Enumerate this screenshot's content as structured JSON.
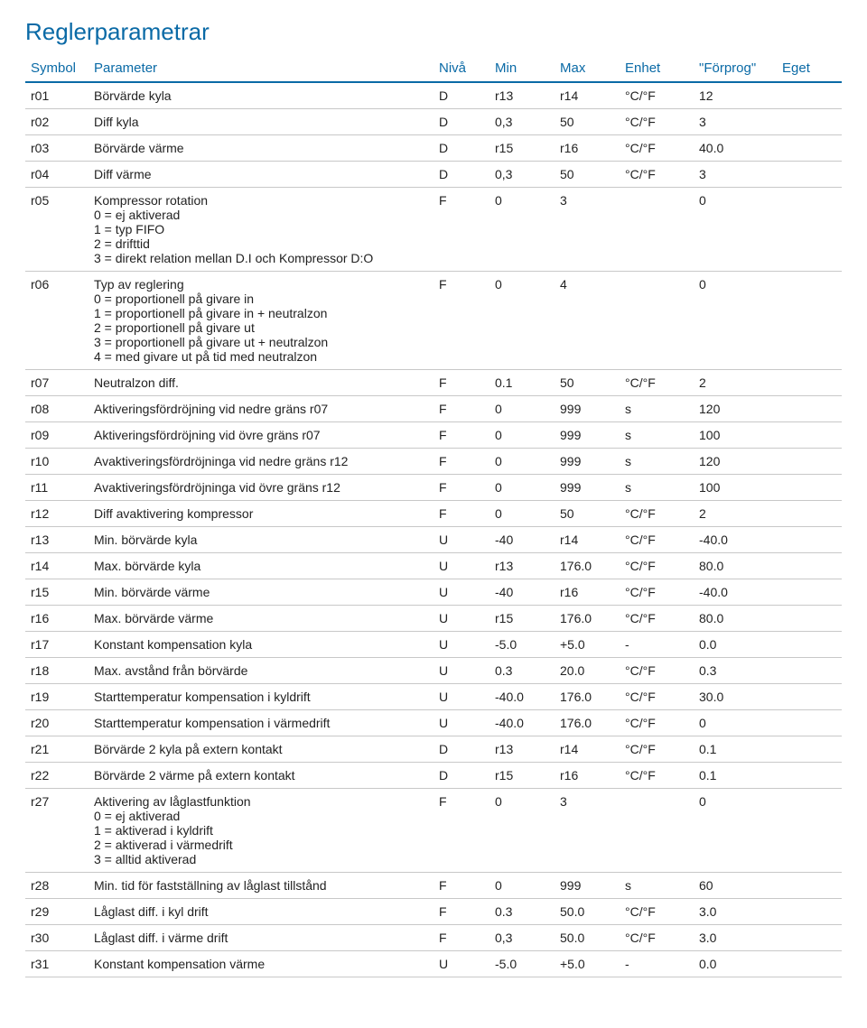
{
  "title": "Reglerparametrar",
  "columns": [
    "Symbol",
    "Parameter",
    "Nivå",
    "Min",
    "Max",
    "Enhet",
    "\"Förprog\"",
    "Eget"
  ],
  "rows": [
    {
      "sym": "r01",
      "param": "Börvärde kyla",
      "niva": "D",
      "min": "r13",
      "max": "r14",
      "enhet": "°C/°F",
      "forprog": "12",
      "eget": ""
    },
    {
      "sym": "r02",
      "param": "Diff kyla",
      "niva": "D",
      "min": "0,3",
      "max": "50",
      "enhet": "°C/°F",
      "forprog": "3",
      "eget": ""
    },
    {
      "sym": "r03",
      "param": "Börvärde värme",
      "niva": "D",
      "min": "r15",
      "max": "r16",
      "enhet": "°C/°F",
      "forprog": "40.0",
      "eget": ""
    },
    {
      "sym": "r04",
      "param": "Diff värme",
      "niva": "D",
      "min": "0,3",
      "max": "50",
      "enhet": "°C/°F",
      "forprog": "3",
      "eget": ""
    },
    {
      "sym": "r05",
      "param": "Kompressor rotation",
      "subs": [
        "0 = ej aktiverad",
        "1 = typ FIFO",
        "2 = drifttid",
        "3 = direkt relation mellan D.I och Kompressor D:O"
      ],
      "niva": "F",
      "min": "0",
      "max": "3",
      "enhet": "",
      "forprog": "0",
      "eget": ""
    },
    {
      "sym": "r06",
      "param": "Typ av reglering",
      "subs": [
        "0 = proportionell på givare in",
        "1 = proportionell på givare in + neutralzon",
        "2 = proportionell på givare ut",
        "3 = proportionell på givare ut + neutralzon",
        "4 = med givare ut på tid med neutralzon"
      ],
      "niva": "F",
      "min": "0",
      "max": "4",
      "enhet": "",
      "forprog": "0",
      "eget": ""
    },
    {
      "sym": "r07",
      "param": "Neutralzon diff.",
      "niva": "F",
      "min": "0.1",
      "max": "50",
      "enhet": "°C/°F",
      "forprog": "2",
      "eget": ""
    },
    {
      "sym": "r08",
      "param": "Aktiveringsfördröjning vid nedre gräns r07",
      "niva": "F",
      "min": "0",
      "max": "999",
      "enhet": "s",
      "forprog": "120",
      "eget": ""
    },
    {
      "sym": "r09",
      "param": "Aktiveringsfördröjning vid övre gräns r07",
      "niva": "F",
      "min": "0",
      "max": "999",
      "enhet": "s",
      "forprog": "100",
      "eget": ""
    },
    {
      "sym": "r10",
      "param": "Avaktiveringsfördröjninga vid nedre gräns r12",
      "niva": "F",
      "min": "0",
      "max": "999",
      "enhet": "s",
      "forprog": "120",
      "eget": ""
    },
    {
      "sym": "r11",
      "param": "Avaktiveringsfördröjninga vid övre gräns r12",
      "niva": "F",
      "min": "0",
      "max": "999",
      "enhet": "s",
      "forprog": "100",
      "eget": ""
    },
    {
      "sym": "r12",
      "param": "Diff avaktivering kompressor",
      "niva": "F",
      "min": "0",
      "max": "50",
      "enhet": "°C/°F",
      "forprog": "2",
      "eget": ""
    },
    {
      "sym": "r13",
      "param": "Min. börvärde kyla",
      "niva": "U",
      "min": "-40",
      "max": "r14",
      "enhet": "°C/°F",
      "forprog": "-40.0",
      "eget": ""
    },
    {
      "sym": "r14",
      "param": "Max. börvärde kyla",
      "niva": "U",
      "min": "r13",
      "max": "176.0",
      "enhet": "°C/°F",
      "forprog": "80.0",
      "eget": ""
    },
    {
      "sym": "r15",
      "param": "Min. börvärde värme",
      "niva": "U",
      "min": "-40",
      "max": "r16",
      "enhet": "°C/°F",
      "forprog": "-40.0",
      "eget": ""
    },
    {
      "sym": "r16",
      "param": "Max. börvärde värme",
      "niva": "U",
      "min": "r15",
      "max": "176.0",
      "enhet": "°C/°F",
      "forprog": "80.0",
      "eget": ""
    },
    {
      "sym": "r17",
      "param": "Konstant kompensation kyla",
      "niva": "U",
      "min": "-5.0",
      "max": "+5.0",
      "enhet": "-",
      "forprog": "0.0",
      "eget": ""
    },
    {
      "sym": "r18",
      "param": "Max. avstånd från börvärde",
      "niva": "U",
      "min": "0.3",
      "max": "20.0",
      "enhet": "°C/°F",
      "forprog": "0.3",
      "eget": ""
    },
    {
      "sym": "r19",
      "param": "Starttemperatur kompensation i kyldrift",
      "niva": "U",
      "min": "-40.0",
      "max": "176.0",
      "enhet": "°C/°F",
      "forprog": "30.0",
      "eget": ""
    },
    {
      "sym": "r20",
      "param": "Starttemperatur kompensation i värmedrift",
      "niva": "U",
      "min": "-40.0",
      "max": "176.0",
      "enhet": "°C/°F",
      "forprog": "0",
      "eget": ""
    },
    {
      "sym": "r21",
      "param": "Börvärde 2 kyla på extern kontakt",
      "niva": "D",
      "min": "r13",
      "max": "r14",
      "enhet": "°C/°F",
      "forprog": "0.1",
      "eget": ""
    },
    {
      "sym": "r22",
      "param": "Börvärde 2 värme på extern kontakt",
      "niva": "D",
      "min": "r15",
      "max": "r16",
      "enhet": "°C/°F",
      "forprog": "0.1",
      "eget": ""
    },
    {
      "sym": "r27",
      "param": "Aktivering av låglastfunktion",
      "subs": [
        "0 = ej aktiverad",
        "1 = aktiverad i kyldrift",
        "2 = aktiverad i värmedrift",
        "3 = alltid aktiverad"
      ],
      "niva": "F",
      "min": "0",
      "max": "3",
      "enhet": "",
      "forprog": "0",
      "eget": ""
    },
    {
      "sym": "r28",
      "param": "Min. tid för fastställning av låglast tillstånd",
      "niva": "F",
      "min": "0",
      "max": "999",
      "enhet": "s",
      "forprog": "60",
      "eget": ""
    },
    {
      "sym": "r29",
      "param": "Låglast diff. i kyl drift",
      "niva": "F",
      "min": "0.3",
      "max": "50.0",
      "enhet": "°C/°F",
      "forprog": "3.0",
      "eget": ""
    },
    {
      "sym": "r30",
      "param": "Låglast diff. i värme drift",
      "niva": "F",
      "min": "0,3",
      "max": "50.0",
      "enhet": "°C/°F",
      "forprog": "3.0",
      "eget": ""
    },
    {
      "sym": "r31",
      "param": "Konstant kompensation värme",
      "niva": "U",
      "min": "-5.0",
      "max": "+5.0",
      "enhet": "-",
      "forprog": "0.0",
      "eget": ""
    }
  ]
}
